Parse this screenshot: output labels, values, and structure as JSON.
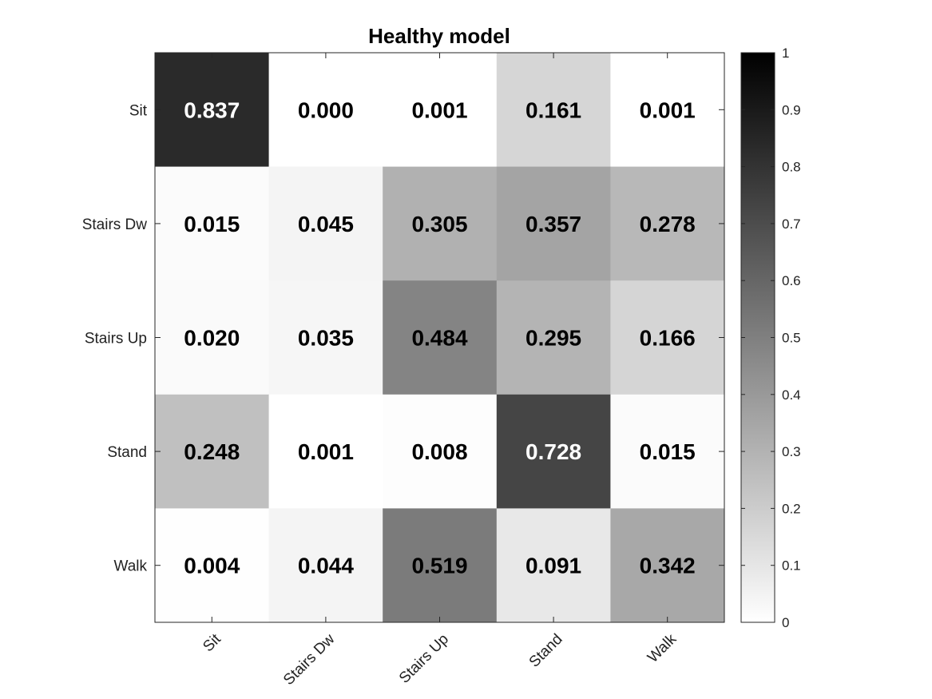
{
  "chart_data": {
    "type": "heatmap",
    "title": "Healthy model",
    "x_categories": [
      "Sit",
      "Stairs Dw",
      "Stairs Up",
      "Stand",
      "Walk"
    ],
    "y_categories": [
      "Sit",
      "Stairs Dw",
      "Stairs Up",
      "Stand",
      "Walk"
    ],
    "values": [
      [
        0.837,
        0.0,
        0.001,
        0.161,
        0.001
      ],
      [
        0.015,
        0.045,
        0.305,
        0.357,
        0.278
      ],
      [
        0.02,
        0.035,
        0.484,
        0.295,
        0.166
      ],
      [
        0.248,
        0.001,
        0.008,
        0.728,
        0.015
      ],
      [
        0.004,
        0.044,
        0.519,
        0.091,
        0.342
      ]
    ],
    "value_labels": [
      [
        "0.837",
        "0.000",
        "0.001",
        "0.161",
        "0.001"
      ],
      [
        "0.015",
        "0.045",
        "0.305",
        "0.357",
        "0.278"
      ],
      [
        "0.020",
        "0.035",
        "0.484",
        "0.295",
        "0.166"
      ],
      [
        "0.248",
        "0.001",
        "0.008",
        "0.728",
        "0.015"
      ],
      [
        "0.004",
        "0.044",
        "0.519",
        "0.091",
        "0.342"
      ]
    ],
    "colorbar": {
      "range": [
        0,
        1
      ],
      "ticks": [
        "0",
        "0.1",
        "0.2",
        "0.3",
        "0.4",
        "0.5",
        "0.6",
        "0.7",
        "0.8",
        "0.9",
        "1"
      ],
      "colormap": "gray-reversed",
      "low_color": "#ffffff",
      "high_color": "#000000"
    },
    "x_tick_rotation_deg": 45,
    "label_colors": {
      "on_dark": "#ffffff",
      "on_light": "#000000"
    }
  }
}
